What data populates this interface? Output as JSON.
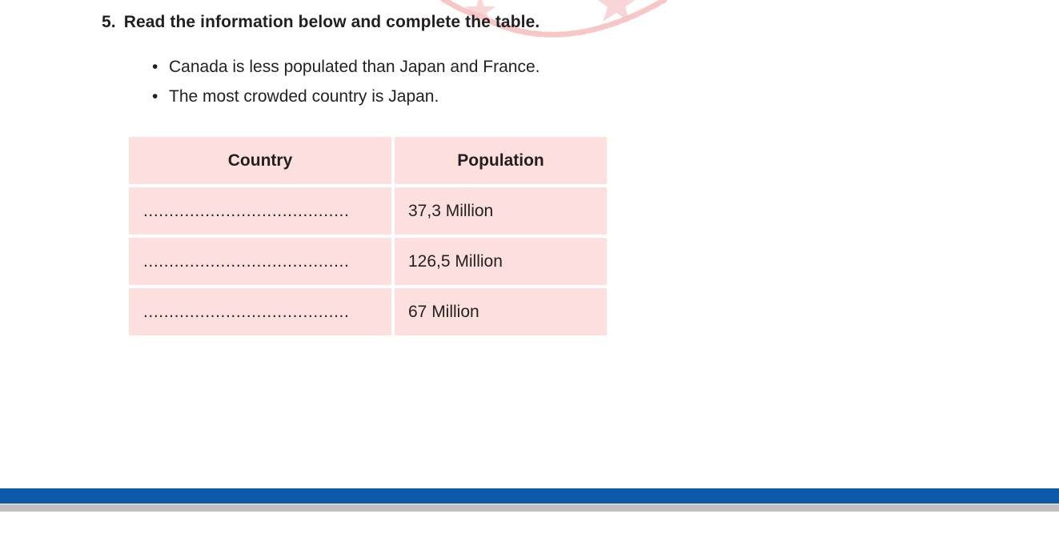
{
  "question": {
    "number": "5.",
    "text": "Read the information below and complete the table."
  },
  "bullets": [
    "Canada is less populated than Japan and France.",
    "The most crowded country is Japan."
  ],
  "table": {
    "headers": [
      "Country",
      "Population"
    ],
    "rows": [
      {
        "country": "........................................",
        "population": "37,3 Million"
      },
      {
        "country": "........................................",
        "population": "126,5 Million"
      },
      {
        "country": "........................................",
        "population": "67 Million"
      }
    ]
  },
  "colors": {
    "cell_background": "#fde0de",
    "footer_blue": "#0b5aa9",
    "footer_gray": "#bfbfc1",
    "watermark": "#f7c6c6"
  }
}
